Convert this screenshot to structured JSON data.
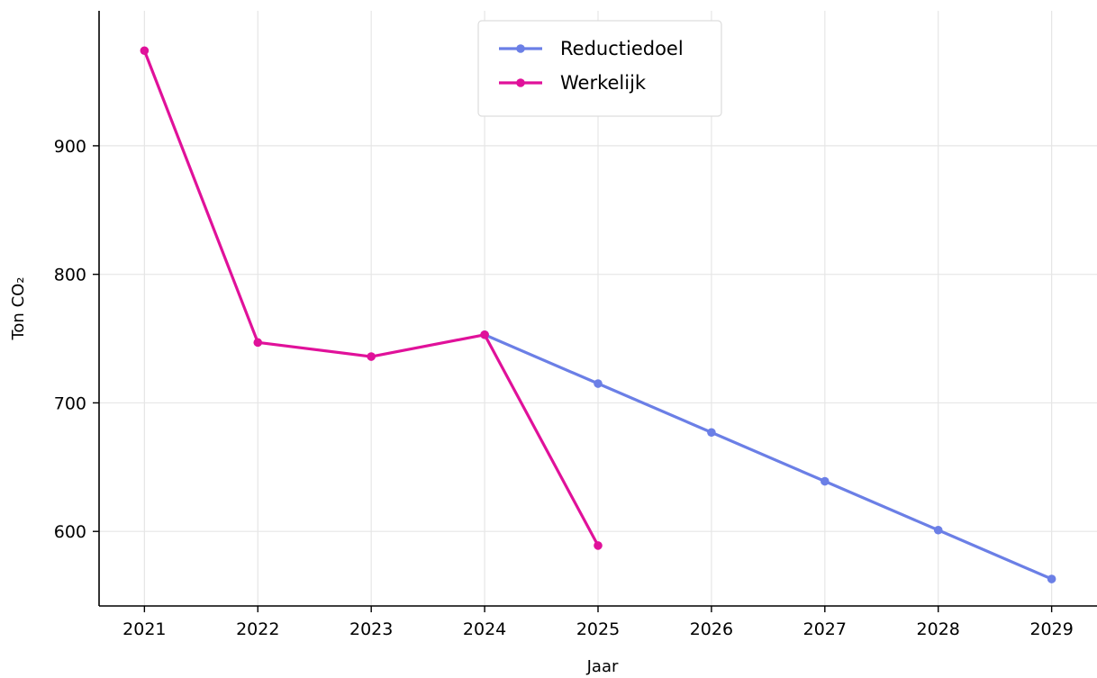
{
  "chart_data": {
    "type": "line",
    "title": "",
    "xlabel": "Jaar",
    "ylabel": "Ton CO₂",
    "x": [
      2021,
      2022,
      2023,
      2024,
      2025,
      2026,
      2027,
      2028,
      2029
    ],
    "xlim": [
      2020.6,
      2029.4
    ],
    "ylim": [
      542,
      1005
    ],
    "yticks": [
      600,
      700,
      800,
      900
    ],
    "grid": true,
    "legend_position": "top-center",
    "series": [
      {
        "name": "Reductiedoel",
        "color": "#6b7fe6",
        "points": [
          {
            "x": 2024,
            "y": 753
          },
          {
            "x": 2025,
            "y": 715
          },
          {
            "x": 2026,
            "y": 677
          },
          {
            "x": 2027,
            "y": 639
          },
          {
            "x": 2028,
            "y": 601
          },
          {
            "x": 2029,
            "y": 563
          }
        ]
      },
      {
        "name": "Werkelijk",
        "color": "#e0119a",
        "points": [
          {
            "x": 2021,
            "y": 974
          },
          {
            "x": 2022,
            "y": 747
          },
          {
            "x": 2023,
            "y": 736
          },
          {
            "x": 2024,
            "y": 753
          },
          {
            "x": 2025,
            "y": 589
          }
        ]
      }
    ]
  }
}
